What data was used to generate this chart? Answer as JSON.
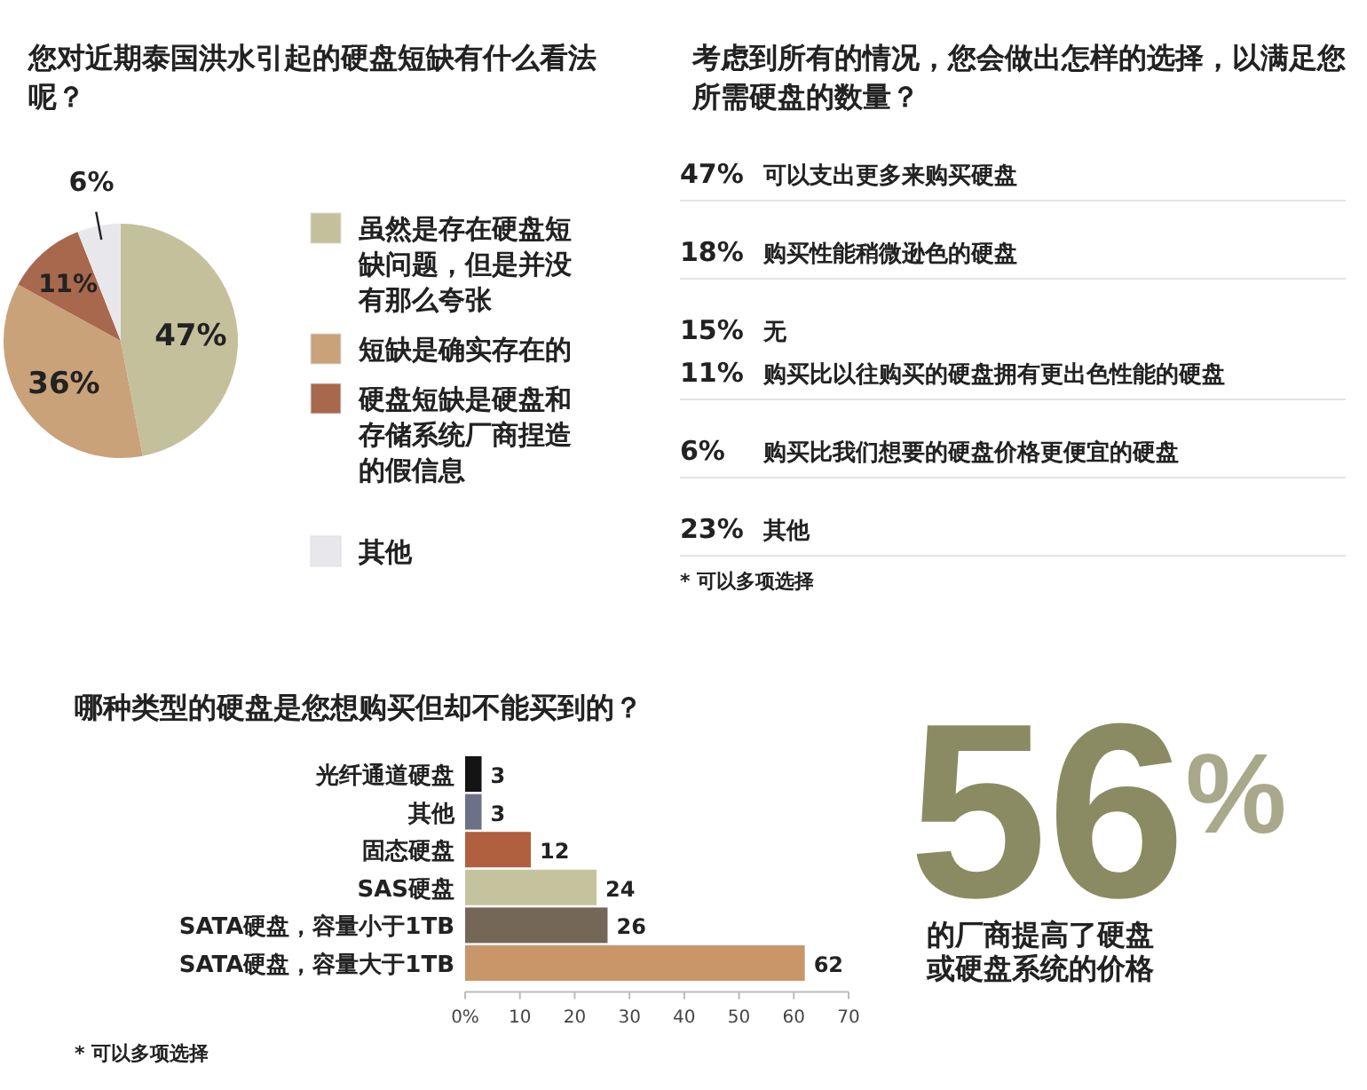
{
  "chart_data": [
    {
      "type": "pie",
      "title": "您对近期泰国洪水引起的硬盘短缺有什么看法呢？",
      "categories": [
        "虽然是存在硬盘短缺问题，但是并没有那么夸张",
        "短缺是确实存在的",
        "硬盘短缺是硬盘和存储系统厂商捏造的假信息",
        "其他"
      ],
      "values": [
        47,
        36,
        11,
        6
      ],
      "value_labels": [
        "47%",
        "36%",
        "11%",
        "6%"
      ],
      "colors": [
        "#c4c09b",
        "#c9a27a",
        "#a8684d",
        "#e8e8ec"
      ],
      "legend": "right"
    },
    {
      "type": "other",
      "title": "考虑到所有的情况，您会做出怎样的选择，以满足您所需硬盘的数量？",
      "categories": [
        "可以支出更多来购买硬盘",
        "购买性能稍微逊色的硬盘",
        "无",
        "购买比以往购买的硬盘拥有更出色性能的硬盘",
        "购买比我们想要的硬盘价格更便宜的硬盘",
        "其他"
      ],
      "value_labels": [
        "47%",
        "18%",
        "15%",
        "11%",
        "6%",
        "23%"
      ],
      "annotations": [
        "* 可以多项选择"
      ]
    },
    {
      "type": "bar",
      "orientation": "horizontal",
      "title": "哪种类型的硬盘是您想购买但却不能买到的？",
      "categories": [
        "光纤通道硬盘",
        "其他",
        "固态硬盘",
        "SAS硬盘",
        "SATA硬盘，容量小于1TB",
        "SATA硬盘，容量大于1TB"
      ],
      "values": [
        3,
        3,
        12,
        24,
        26,
        62
      ],
      "colors": [
        "#141414",
        "#6b7287",
        "#b0603f",
        "#c5c39e",
        "#756758",
        "#c9966a"
      ],
      "xlim": [
        0,
        70
      ],
      "xticks": [
        {
          "value": 0,
          "label": "0%"
        },
        10,
        20,
        30,
        40,
        50,
        60,
        70
      ],
      "data_labels": true,
      "grid": false,
      "annotations": [
        "* 可以多项选择"
      ]
    },
    {
      "type": "other",
      "values": [
        56
      ],
      "value_labels": [
        "56$^{%}$"
      ],
      "color": "#8b8b63",
      "annotations": [
        "的厂商提高了硬盘或硬盘系统的价格"
      ]
    }
  ]
}
